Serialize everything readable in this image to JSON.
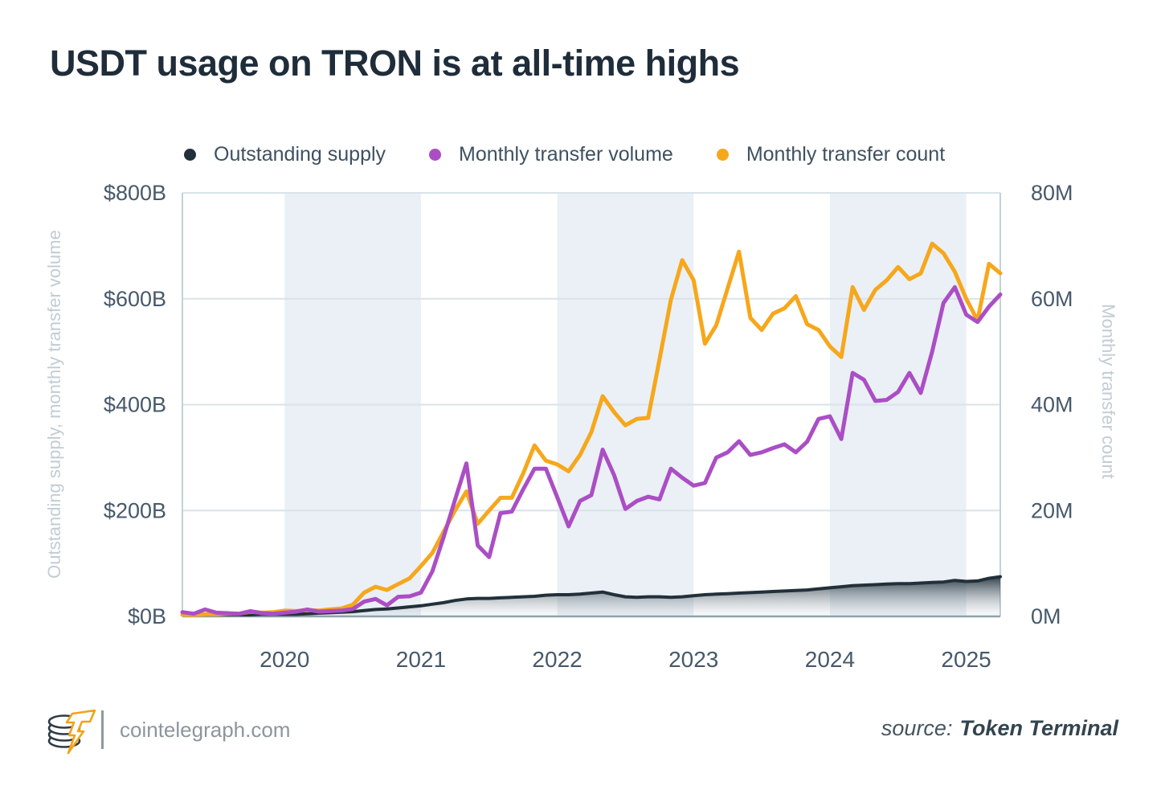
{
  "title": "USDT usage on TRON is at all-time highs",
  "legend": [
    {
      "label": "Outstanding supply",
      "color": "#22303A"
    },
    {
      "label": "Monthly transfer volume",
      "color": "#AB4EC5"
    },
    {
      "label": "Monthly transfer count",
      "color": "#F6A71B"
    }
  ],
  "footer": {
    "site": "cointelegraph.com",
    "source_label": "source:",
    "source_name": "Token Terminal"
  },
  "chart_data": {
    "type": "line",
    "title": "USDT usage on TRON is at all-time highs",
    "grid": true,
    "legend_position": "top",
    "x_months": [
      "2019-04",
      "2019-05",
      "2019-06",
      "2019-07",
      "2019-08",
      "2019-09",
      "2019-10",
      "2019-11",
      "2019-12",
      "2020-01",
      "2020-02",
      "2020-03",
      "2020-04",
      "2020-05",
      "2020-06",
      "2020-07",
      "2020-08",
      "2020-09",
      "2020-10",
      "2020-11",
      "2020-12",
      "2021-01",
      "2021-02",
      "2021-03",
      "2021-04",
      "2021-05",
      "2021-06",
      "2021-07",
      "2021-08",
      "2021-09",
      "2021-10",
      "2021-11",
      "2021-12",
      "2022-01",
      "2022-02",
      "2022-03",
      "2022-04",
      "2022-05",
      "2022-06",
      "2022-07",
      "2022-08",
      "2022-09",
      "2022-10",
      "2022-11",
      "2022-12",
      "2023-01",
      "2023-02",
      "2023-03",
      "2023-04",
      "2023-05",
      "2023-06",
      "2023-07",
      "2023-08",
      "2023-09",
      "2023-10",
      "2023-11",
      "2023-12",
      "2024-01",
      "2024-02",
      "2024-03",
      "2024-04",
      "2024-05",
      "2024-06",
      "2024-07",
      "2024-08",
      "2024-09",
      "2024-10",
      "2024-11",
      "2024-12",
      "2025-01",
      "2025-02",
      "2025-03",
      "2025-04"
    ],
    "x_tick_years": [
      "2020",
      "2021",
      "2022",
      "2023",
      "2024",
      "2025"
    ],
    "shaded_year_bands": [
      [
        "2020-01",
        "2021-01"
      ],
      [
        "2022-01",
        "2023-01"
      ],
      [
        "2024-01",
        "2025-01"
      ]
    ],
    "left_axis": {
      "title": "Outstanding supply, monthly transfer volume",
      "range": [
        0,
        800
      ],
      "ticks": [
        {
          "v": 0,
          "label": "$0B"
        },
        {
          "v": 200,
          "label": "$200B"
        },
        {
          "v": 400,
          "label": "$400B"
        },
        {
          "v": 600,
          "label": "$600B"
        },
        {
          "v": 800,
          "label": "$800B"
        }
      ]
    },
    "right_axis": {
      "title": "Monthly transfer count",
      "range": [
        0,
        80
      ],
      "ticks": [
        {
          "v": 0,
          "label": "0M"
        },
        {
          "v": 20,
          "label": "20M"
        },
        {
          "v": 40,
          "label": "40M"
        },
        {
          "v": 60,
          "label": "60M"
        },
        {
          "v": 80,
          "label": "80M"
        }
      ]
    },
    "series": [
      {
        "id": "outstanding-supply",
        "name": "Outstanding supply",
        "axis": "left",
        "unit": "$B",
        "color": "#22303A",
        "style": "area",
        "values": [
          3,
          3,
          3,
          3,
          3,
          3,
          3,
          4,
          4,
          4,
          4,
          5,
          6,
          7,
          8,
          9,
          11,
          13,
          14,
          16,
          18,
          20,
          23,
          26,
          30,
          33,
          34,
          34,
          35,
          36,
          37,
          38,
          40,
          41,
          41,
          42,
          44,
          46,
          41,
          37,
          36,
          37,
          37,
          36,
          37,
          39,
          41,
          42,
          43,
          44,
          45,
          46,
          47,
          48,
          49,
          50,
          52,
          54,
          56,
          58,
          59,
          60,
          61,
          62,
          62,
          63,
          64,
          65,
          68,
          66,
          67,
          72,
          75
        ]
      },
      {
        "id": "monthly-transfer-count",
        "name": "Monthly transfer count",
        "axis": "right",
        "unit": "M",
        "color": "#F6A71B",
        "style": "line",
        "values": [
          0.3,
          0.3,
          0.4,
          0.4,
          0.5,
          0.5,
          0.9,
          0.7,
          0.8,
          1.1,
          1.0,
          1.2,
          1.1,
          1.3,
          1.5,
          2.2,
          4.5,
          5.6,
          5.0,
          6.1,
          7.2,
          9.5,
          12,
          16,
          20,
          23.6,
          17.5,
          20,
          22.4,
          22.4,
          27,
          32.3,
          29.4,
          28.7,
          27.4,
          30.5,
          34.8,
          41.6,
          38.6,
          36.1,
          37.3,
          37.5,
          48.5,
          59.8,
          67.3,
          63.5,
          51.5,
          55,
          62,
          68.9,
          56.4,
          54.1,
          57.2,
          58.2,
          60.5,
          55.2,
          54.1,
          51,
          49,
          62.2,
          57.9,
          61.7,
          63.5,
          66,
          63.7,
          64.8,
          70.4,
          68.6,
          65.1,
          60,
          55.9,
          66.6,
          64.8
        ]
      },
      {
        "id": "monthly-transfer-volume",
        "name": "Monthly transfer volume",
        "axis": "left",
        "unit": "$B",
        "color": "#AB4EC5",
        "style": "line",
        "values": [
          8,
          5,
          13,
          7,
          6,
          5,
          10,
          6,
          5,
          7,
          9,
          13,
          9,
          10,
          11,
          14,
          28,
          33,
          21,
          37,
          38,
          45,
          85,
          150,
          220,
          289,
          134,
          112,
          195,
          198,
          240,
          279,
          279,
          225,
          170,
          218,
          229,
          315,
          267,
          203,
          218,
          226,
          221,
          279,
          262,
          247,
          252,
          300,
          310,
          331,
          305,
          310,
          318,
          325,
          310,
          330,
          373,
          378,
          335,
          460,
          447,
          407,
          409,
          424,
          460,
          422,
          500,
          592,
          622,
          570,
          556,
          585,
          608
        ]
      }
    ]
  }
}
